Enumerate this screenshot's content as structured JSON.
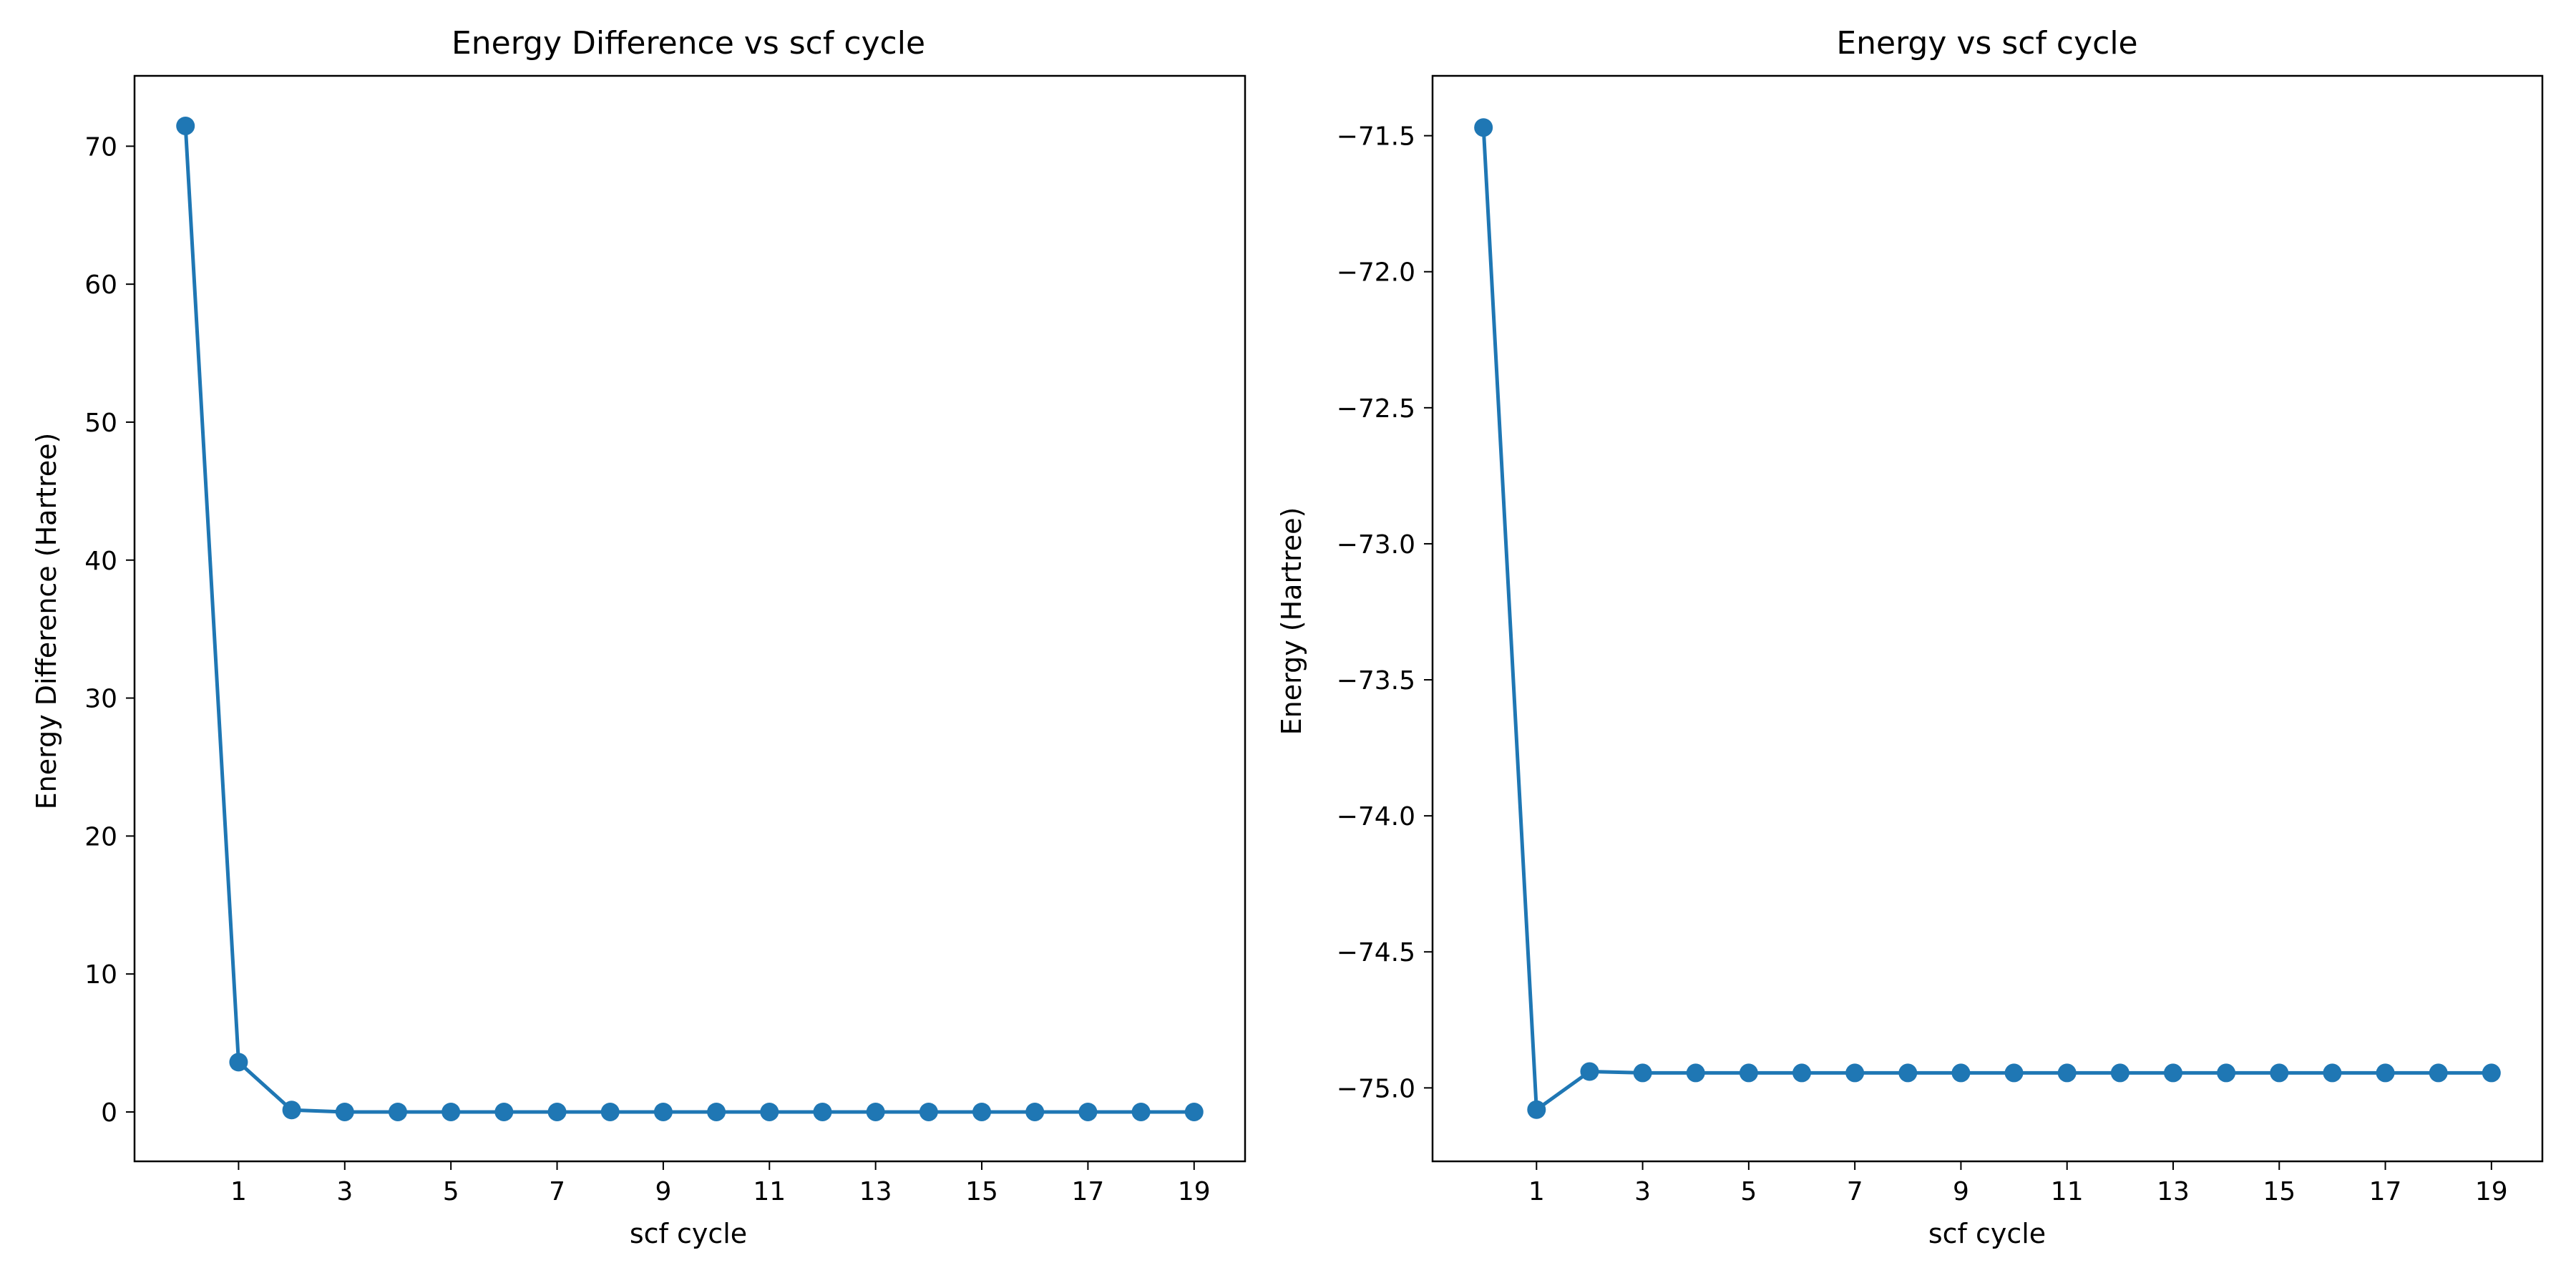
{
  "colors": {
    "series": "#1f77b4",
    "axes": "#000000",
    "background": "#ffffff"
  },
  "chart_data": [
    {
      "type": "line",
      "title": "Energy Difference vs scf cycle",
      "xlabel": "scf cycle",
      "ylabel": "Energy Difference (Hartree)",
      "xlim": [
        -0.96,
        19.96
      ],
      "ylim": [
        -3.58,
        75.1
      ],
      "xticks": [
        1,
        3,
        5,
        7,
        9,
        11,
        13,
        15,
        17,
        19
      ],
      "xtick_labels": [
        "1",
        "3",
        "5",
        "7",
        "9",
        "11",
        "13",
        "15",
        "17",
        "19"
      ],
      "yticks": [
        0,
        10,
        20,
        30,
        40,
        50,
        60,
        70
      ],
      "ytick_labels": [
        "0",
        "10",
        "20",
        "30",
        "40",
        "50",
        "60",
        "70"
      ],
      "grid": false,
      "legend": "none",
      "series": [
        {
          "x": [
            0,
            1,
            2,
            3,
            4,
            5,
            6,
            7,
            8,
            9,
            10,
            11,
            12,
            13,
            14,
            15,
            16,
            17,
            18,
            19
          ],
          "y": [
            71.47,
            3.61,
            0.14,
            0.0,
            0.0,
            0.0,
            0.0,
            0.0,
            0.0,
            0.0,
            0.0,
            0.0,
            0.0,
            0.0,
            0.0,
            0.0,
            0.0,
            0.0,
            0.0,
            0.0
          ],
          "marker": "circle"
        }
      ]
    },
    {
      "type": "line",
      "title": "Energy vs scf cycle",
      "xlabel": "scf cycle",
      "ylabel": "Energy (Hartree)",
      "xlim": [
        -0.96,
        19.96
      ],
      "ylim": [
        -75.27,
        -71.28
      ],
      "xticks": [
        1,
        3,
        5,
        7,
        9,
        11,
        13,
        15,
        17,
        19
      ],
      "xtick_labels": [
        "1",
        "3",
        "5",
        "7",
        "9",
        "11",
        "13",
        "15",
        "17",
        "19"
      ],
      "yticks": [
        -75.0,
        -74.5,
        -74.0,
        -73.5,
        -73.0,
        -72.5,
        -72.0,
        -71.5
      ],
      "ytick_labels": [
        "−75.0",
        "−74.5",
        "−74.0",
        "−73.5",
        "−73.0",
        "−72.5",
        "−72.0",
        "−71.5"
      ],
      "grid": false,
      "legend": "none",
      "series": [
        {
          "x": [
            0,
            1,
            2,
            3,
            4,
            5,
            6,
            7,
            8,
            9,
            10,
            11,
            12,
            13,
            14,
            15,
            16,
            17,
            18,
            19
          ],
          "y": [
            -71.47,
            -75.08,
            -74.94,
            -74.945,
            -74.945,
            -74.945,
            -74.945,
            -74.945,
            -74.945,
            -74.945,
            -74.945,
            -74.945,
            -74.945,
            -74.945,
            -74.945,
            -74.945,
            -74.945,
            -74.945,
            -74.945,
            -74.945
          ],
          "marker": "circle"
        }
      ]
    }
  ]
}
